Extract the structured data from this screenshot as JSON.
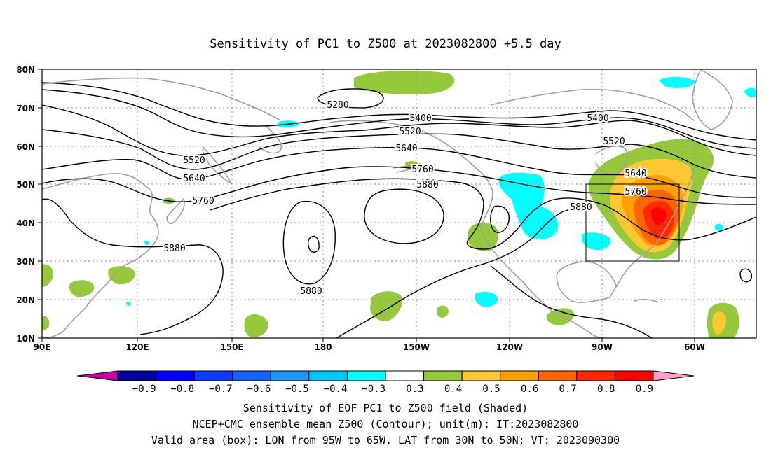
{
  "title": "Sensitivity of PC1 to Z500 at 2023082800 +5.5 day",
  "lat_ticks": [
    "80N",
    "70N",
    "60N",
    "50N",
    "40N",
    "30N",
    "20N",
    "10N"
  ],
  "lon_ticks": [
    "90E",
    "120E",
    "150E",
    "180",
    "150W",
    "120W",
    "90W",
    "60W"
  ],
  "contour_labels": [
    {
      "text": "5280"
    },
    {
      "text": "5400"
    },
    {
      "text": "5520"
    },
    {
      "text": "5640"
    },
    {
      "text": "5760"
    },
    {
      "text": "5880"
    },
    {
      "text": "5400"
    },
    {
      "text": "5520"
    },
    {
      "text": "5640"
    },
    {
      "text": "5760"
    },
    {
      "text": "5880"
    },
    {
      "text": "5520"
    },
    {
      "text": "5640"
    },
    {
      "text": "5760"
    },
    {
      "text": "5880"
    },
    {
      "text": "5880"
    }
  ],
  "colorbar": {
    "labels": [
      "−0.9",
      "−0.8",
      "−0.7",
      "−0.6",
      "−0.5",
      "−0.4",
      "−0.3",
      "0.3",
      "0.4",
      "0.5",
      "0.6",
      "0.7",
      "0.8",
      "0.9"
    ],
    "colors": [
      "#0000a0",
      "#0000ff",
      "#0a3cff",
      "#1464ff",
      "#1e96ff",
      "#00c8ff",
      "#00ffff",
      "#ffffff",
      "#96c83c",
      "#ffc832",
      "#ffa000",
      "#ff6400",
      "#ff2800",
      "#ff0000"
    ],
    "low_end_color": "#c800a0",
    "high_end_color": "#ff9ec8"
  },
  "captions": [
    "Sensitivity of EOF PC1 to Z500 field (Shaded)",
    "NCEP+CMC ensemble mean Z500 (Contour); unit(m); IT:2023082800",
    "Valid area (box): LON from 95W to 65W, LAT from 30N to 50N; VT: 2023090300"
  ],
  "valid_box": {
    "lon_from": "95W",
    "lon_to": "65W",
    "lat_from": "30N",
    "lat_to": "50N"
  }
}
